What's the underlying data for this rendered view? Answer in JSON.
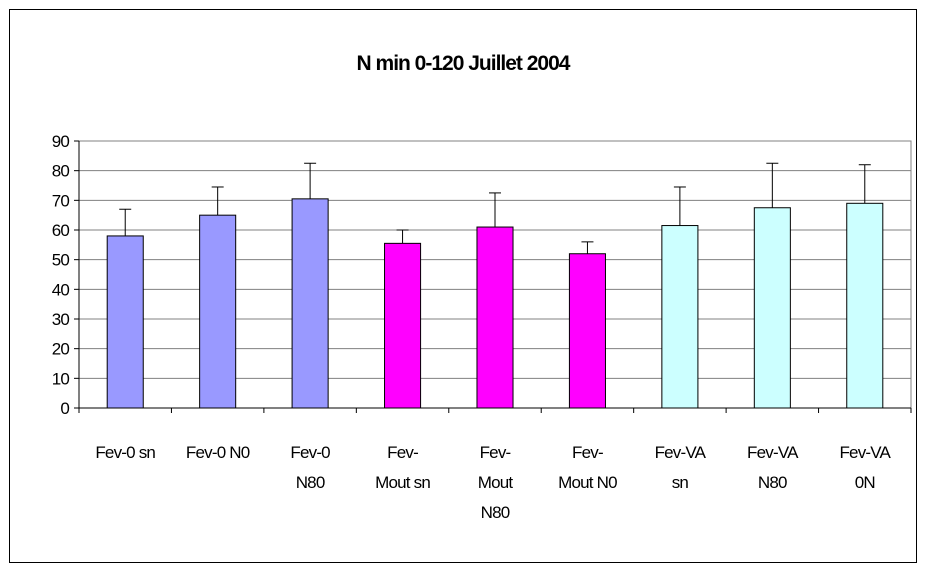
{
  "chart_data": {
    "type": "bar",
    "title": "N min 0-120 Juillet 2004",
    "categories": [
      "Fev-0 sn",
      "Fev-0 N0",
      "Fev-0 N80",
      "Fev-Mout sn",
      "Fev-Mout N80",
      "Fev-Mout N0",
      "Fev-VA sn",
      "Fev-VA N80",
      "Fev-VA 0N"
    ],
    "values": [
      58,
      65,
      70.5,
      55.5,
      61,
      52,
      61.5,
      67.5,
      69
    ],
    "errors": [
      9,
      9.5,
      12,
      4.5,
      11.5,
      4,
      13,
      15,
      13
    ],
    "colors": [
      "#9999ff",
      "#9999ff",
      "#9999ff",
      "#ff00ff",
      "#ff00ff",
      "#ff00ff",
      "#ccffff",
      "#ccffff",
      "#ccffff"
    ],
    "ylim": [
      0,
      90
    ],
    "yticks": [
      0,
      10,
      20,
      30,
      40,
      50,
      60,
      70,
      80,
      90
    ],
    "grid": true
  }
}
